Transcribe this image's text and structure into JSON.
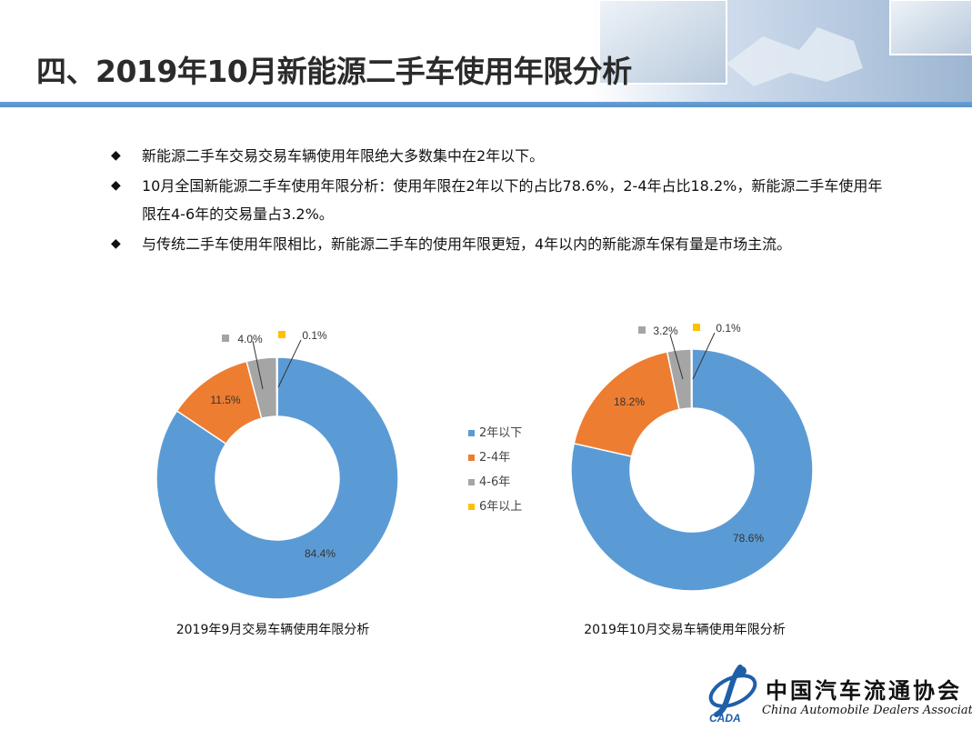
{
  "title": "四、2019年10月新能源二手车使用年限分析",
  "bullets": [
    {
      "icon": "diamond-icon",
      "text": "新能源二手车交易交易车辆使用年限绝大多数集中在2年以下。"
    },
    {
      "icon": "diamond-icon",
      "text": "10月全国新能源二手车使用年限分析：使用年限在2年以下的占比78.6%，2-4年占比18.2%，新能源二手车使用年限在4-6年的交易量占3.2%。"
    },
    {
      "icon": "diamond-icon",
      "text": "与传统二手车使用年限相比，新能源二手车的使用年限更短，4年以内的新能源车保有量是市场主流。"
    }
  ],
  "colors": {
    "accent": "#4a86c4",
    "series": [
      "#5b9bd5",
      "#ed7d31",
      "#a5a5a5",
      "#ffc000"
    ]
  },
  "legend": [
    "2年以下",
    "2-4年",
    "4-6年",
    "6年以上"
  ],
  "chart_data": [
    {
      "type": "pie",
      "variant": "donut",
      "title": "2019年9月交易车辆使用年限分析",
      "categories": [
        "2年以下",
        "2-4年",
        "4-6年",
        "6年以上"
      ],
      "values": [
        84.4,
        11.5,
        4.0,
        0.1
      ],
      "labels": [
        "84.4%",
        "11.5%",
        "4.0%",
        "0.1%"
      ],
      "legend_position": "center"
    },
    {
      "type": "pie",
      "variant": "donut",
      "title": "2019年10月交易车辆使用年限分析",
      "categories": [
        "2年以下",
        "2-4年",
        "4-6年",
        "6年以上"
      ],
      "values": [
        78.6,
        18.2,
        3.2,
        0.1
      ],
      "labels": [
        "78.6%",
        "18.2%",
        "3.2%",
        "0.1%"
      ],
      "legend_position": "center"
    }
  ],
  "logo": {
    "cn": "中国汽车流通协会",
    "en": "China Automobile Dealers Association",
    "abbr": "CADA"
  }
}
